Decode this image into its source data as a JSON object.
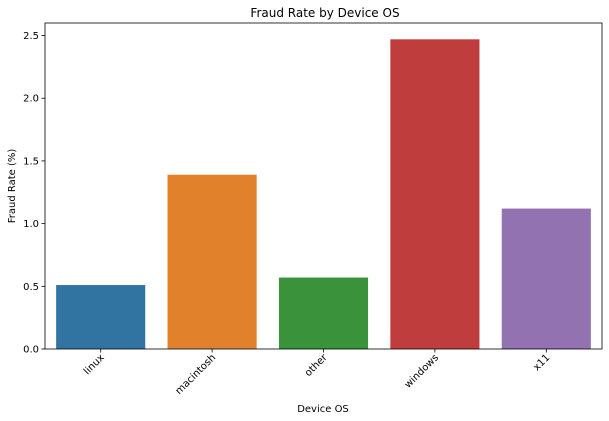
{
  "chart_data": {
    "type": "bar",
    "title": "Fraud Rate by Device OS",
    "xlabel": "Device OS",
    "ylabel": "Fraud Rate (%)",
    "categories": [
      "linux",
      "macintosh",
      "other",
      "windows",
      "x11"
    ],
    "values": [
      0.51,
      1.39,
      0.57,
      2.47,
      1.12
    ],
    "colors": [
      "#3274a1",
      "#e1812c",
      "#3a923a",
      "#c03d3e",
      "#9372b2"
    ],
    "ylim": [
      0,
      2.6
    ],
    "yticks": [
      0.0,
      0.5,
      1.0,
      1.5,
      2.0,
      2.5
    ],
    "ytick_labels": [
      "0.0",
      "0.5",
      "1.0",
      "1.5",
      "2.0",
      "2.5"
    ],
    "grid": false,
    "legend": "none"
  }
}
